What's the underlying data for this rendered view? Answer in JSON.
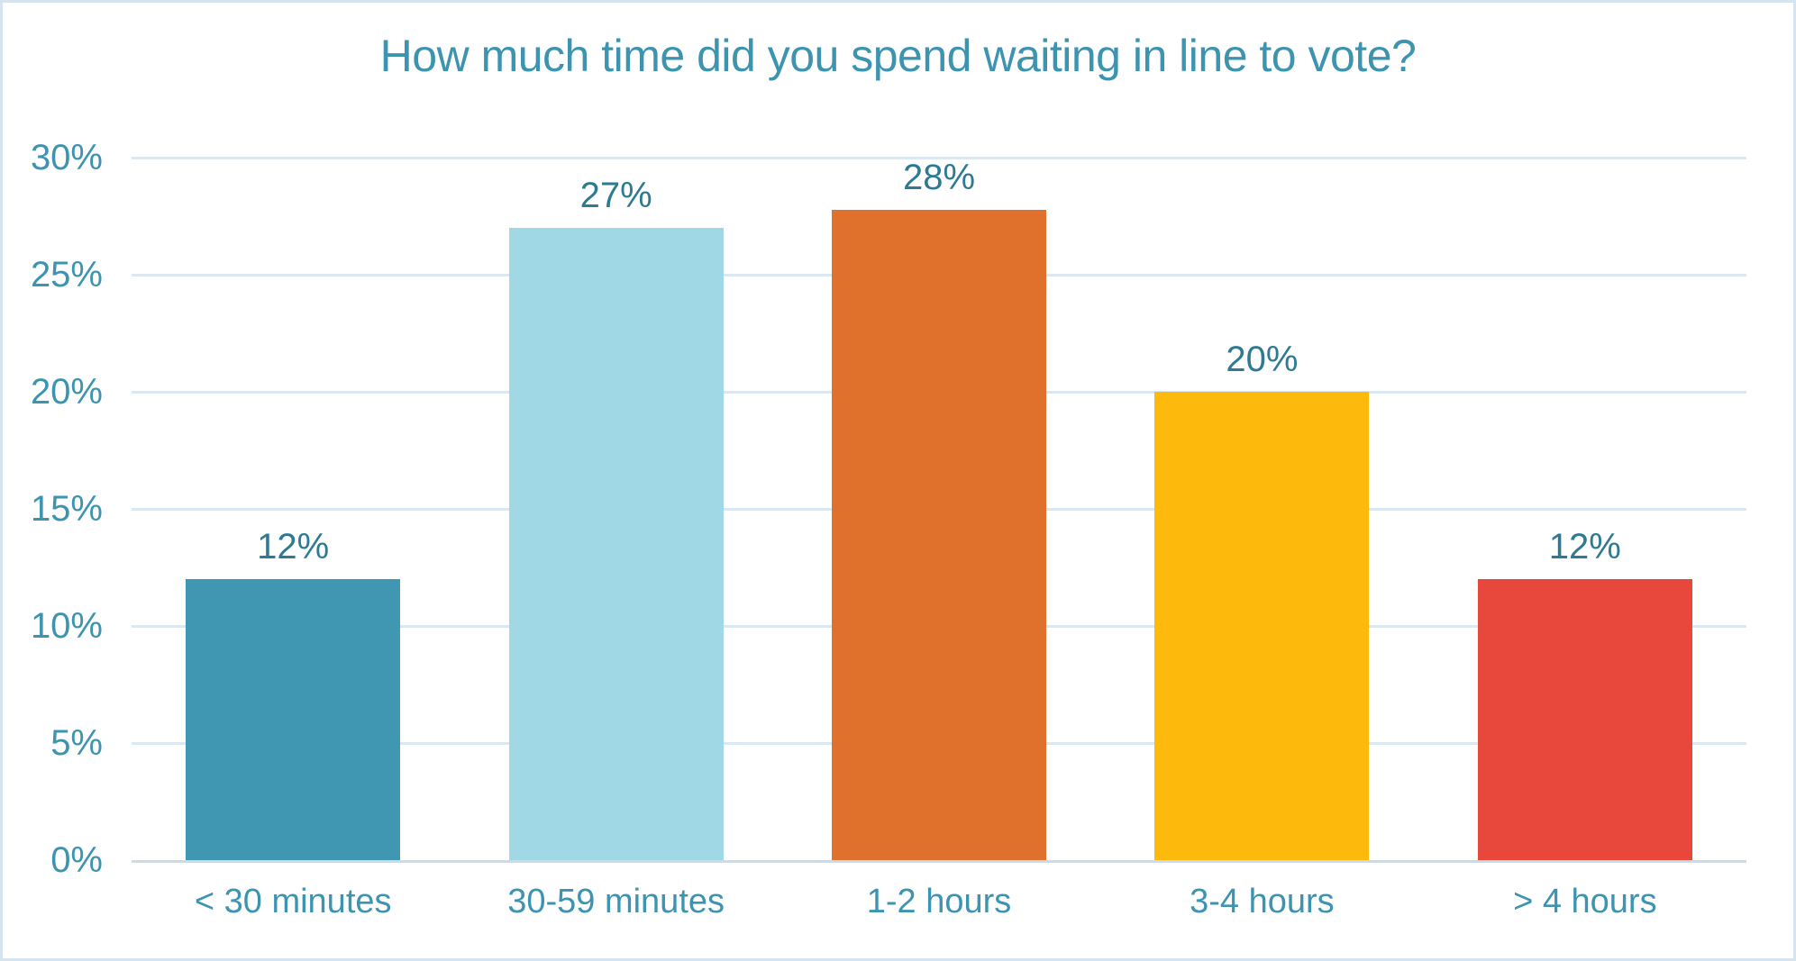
{
  "page": {
    "background": "#ffffff",
    "border_color": "#d5e4ee"
  },
  "chart_data": {
    "type": "bar",
    "title": "How much time did you spend waiting in line to vote?",
    "categories": [
      "< 30 minutes",
      "30-59 minutes",
      "1-2 hours",
      "3-4 hours",
      "> 4 hours"
    ],
    "values": [
      12,
      27,
      28,
      20,
      12
    ],
    "value_labels": [
      "12%",
      "27%",
      "28%",
      "20%",
      "12%"
    ],
    "bar_colors": [
      "#3F97B2",
      "#A1D8E5",
      "#E0712C",
      "#FDBA0D",
      "#E8473C"
    ],
    "y_ticks": [
      0,
      5,
      10,
      15,
      20,
      25,
      30
    ],
    "y_tick_labels": [
      "0%",
      "5%",
      "10%",
      "15%",
      "20%",
      "25%",
      "30%"
    ],
    "ylim": [
      0,
      30
    ],
    "xlabel": "",
    "ylabel": "",
    "grid": true,
    "legend": "none",
    "title_color": "#3D94B1",
    "tick_label_color": "#3D94B1",
    "value_label_color": "#2F7A93",
    "gridline_color": "#dce8f1",
    "axis_line_color": "#c8dde9"
  }
}
